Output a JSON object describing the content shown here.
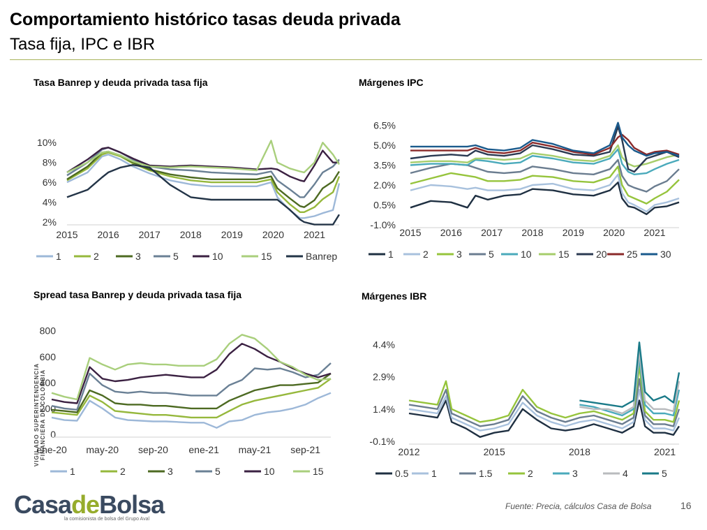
{
  "header": {
    "title": "Comportamiento histórico tasas deuda privada",
    "subtitle": "Tasa fija, IPC e IBR"
  },
  "footer": {
    "source": "Fuente: Precia, cálculos Casa de Bolsa",
    "page": "16",
    "logo_part1": "Casa",
    "logo_part2": "de",
    "logo_part3": "Bolsa",
    "logo_tagline": "la comisionista de bolsa del Grupo Aval",
    "side_text": "VIGILADO SUPERINTENDENCIA FINANCIERA DE COLOMBIA"
  },
  "chart_data": [
    {
      "type": "line",
      "title": "Tasa Banrep y deuda privada tasa fija",
      "x": [
        2015.0,
        2015.5,
        2015.85,
        2016.0,
        2016.3,
        2016.6,
        2017.0,
        2017.5,
        2018.0,
        2018.5,
        2019.0,
        2019.6,
        2019.95,
        2020.1,
        2020.4,
        2020.65,
        2020.75,
        2021.0,
        2021.2,
        2021.45,
        2021.6
      ],
      "x_ticks": [
        "2015",
        "2016",
        "2017",
        "2018",
        "2019",
        "2020",
        "2021"
      ],
      "y_ticks": [
        "2%",
        "4%",
        "6%",
        "8%",
        "10%"
      ],
      "ylim": [
        2,
        11
      ],
      "series": [
        {
          "name": "1",
          "color": "#9db8d8",
          "values": [
            6.0,
            7.0,
            8.6,
            8.8,
            8.3,
            7.6,
            6.9,
            6.2,
            5.8,
            5.6,
            5.6,
            5.6,
            6.0,
            4.5,
            3.2,
            2.4,
            2.4,
            2.6,
            2.9,
            3.2,
            5.9
          ]
        },
        {
          "name": "2",
          "color": "#96b83c",
          "values": [
            6.2,
            7.4,
            8.8,
            9.0,
            8.6,
            7.9,
            7.2,
            6.6,
            6.2,
            6.0,
            6.0,
            6.0,
            6.3,
            5.0,
            3.8,
            3.0,
            3.0,
            3.5,
            4.3,
            5.0,
            6.6
          ]
        },
        {
          "name": "3",
          "color": "#4d6a22",
          "values": [
            6.3,
            7.6,
            9.0,
            9.1,
            8.7,
            8.0,
            7.3,
            6.8,
            6.5,
            6.3,
            6.3,
            6.3,
            6.6,
            5.4,
            4.4,
            3.6,
            3.5,
            4.2,
            5.4,
            6.1,
            7.1
          ]
        },
        {
          "name": "5",
          "color": "#6a8095",
          "values": [
            6.7,
            8.0,
            9.3,
            9.5,
            9.0,
            8.3,
            7.6,
            7.3,
            7.2,
            7.0,
            6.9,
            6.8,
            7.1,
            6.2,
            5.3,
            4.5,
            4.5,
            5.8,
            7.0,
            7.6,
            8.3
          ]
        },
        {
          "name": "10",
          "color": "#3b2142",
          "values": [
            7.0,
            8.3,
            9.4,
            9.5,
            9.0,
            8.4,
            7.7,
            7.6,
            7.7,
            7.6,
            7.5,
            7.3,
            7.4,
            7.3,
            6.6,
            6.2,
            6.1,
            7.7,
            9.2,
            8.0,
            8.0
          ]
        },
        {
          "name": "15",
          "color": "#a9cf7c",
          "values": [
            7.0,
            8.0,
            9.0,
            9.1,
            8.7,
            8.1,
            7.6,
            7.5,
            7.6,
            7.5,
            7.4,
            7.2,
            10.2,
            8.0,
            7.4,
            7.1,
            7.0,
            8.0,
            10.0,
            8.8,
            7.8
          ]
        },
        {
          "name": "Banrep",
          "color": "#233447",
          "values": [
            4.5,
            5.25,
            6.5,
            7.0,
            7.5,
            7.75,
            7.5,
            5.75,
            4.5,
            4.25,
            4.25,
            4.25,
            4.25,
            4.25,
            3.25,
            2.25,
            2.0,
            1.75,
            1.75,
            1.75,
            2.75
          ]
        }
      ]
    },
    {
      "type": "line",
      "title": "Márgenes IPC",
      "x": [
        2015.0,
        2015.5,
        2016.0,
        2016.4,
        2016.6,
        2016.9,
        2017.3,
        2017.7,
        2018.0,
        2018.5,
        2019.0,
        2019.5,
        2019.9,
        2020.1,
        2020.2,
        2020.35,
        2020.5,
        2020.8,
        2021.0,
        2021.3,
        2021.6
      ],
      "x_ticks": [
        "2015",
        "2016",
        "2017",
        "2018",
        "2019",
        "2020",
        "2021"
      ],
      "y_ticks": [
        "-1.0%",
        "0.5%",
        "2.0%",
        "3.5%",
        "5.0%",
        "6.5%"
      ],
      "ylim": [
        -1.0,
        7.0
      ],
      "series": [
        {
          "name": "1",
          "color": "#1f3042",
          "values": [
            0.3,
            0.8,
            0.7,
            0.3,
            1.2,
            0.9,
            1.2,
            1.3,
            1.7,
            1.6,
            1.3,
            1.2,
            1.6,
            2.2,
            1.0,
            0.4,
            0.3,
            -0.2,
            0.3,
            0.4,
            0.7
          ]
        },
        {
          "name": "2",
          "color": "#a8c1dd",
          "values": [
            1.6,
            2.0,
            1.9,
            1.7,
            1.8,
            1.6,
            1.6,
            1.7,
            2.0,
            2.1,
            1.7,
            1.6,
            2.0,
            2.8,
            1.4,
            0.7,
            0.5,
            0.0,
            0.5,
            0.7,
            1.0
          ]
        },
        {
          "name": "3",
          "color": "#96c43c",
          "values": [
            2.1,
            2.5,
            2.9,
            2.7,
            2.6,
            2.3,
            2.3,
            2.4,
            2.7,
            2.6,
            2.3,
            2.2,
            2.6,
            3.4,
            2.0,
            1.2,
            1.0,
            0.6,
            1.0,
            1.5,
            2.4
          ]
        },
        {
          "name": "5",
          "color": "#6b7d90",
          "values": [
            2.9,
            3.3,
            3.6,
            3.5,
            3.3,
            3.0,
            2.9,
            3.0,
            3.4,
            3.2,
            2.9,
            2.8,
            3.2,
            3.9,
            2.7,
            2.0,
            1.8,
            1.5,
            1.9,
            2.3,
            3.2
          ]
        },
        {
          "name": "10",
          "color": "#4aaabb",
          "values": [
            3.5,
            3.6,
            3.6,
            3.5,
            3.9,
            3.8,
            3.6,
            3.7,
            4.2,
            4.0,
            3.7,
            3.6,
            4.0,
            4.7,
            3.6,
            3.0,
            2.8,
            2.9,
            3.2,
            3.6,
            3.9
          ]
        },
        {
          "name": "15",
          "color": "#a6cd6b",
          "values": [
            3.7,
            3.8,
            3.8,
            3.7,
            4.0,
            4.0,
            3.9,
            4.0,
            4.4,
            4.2,
            3.9,
            3.8,
            4.2,
            5.0,
            4.1,
            3.6,
            3.4,
            3.6,
            3.8,
            4.1,
            4.3
          ]
        },
        {
          "name": "20",
          "color": "#2b3a52",
          "values": [
            4.0,
            4.2,
            4.3,
            4.2,
            4.6,
            4.3,
            4.2,
            4.4,
            5.0,
            4.7,
            4.3,
            4.2,
            4.5,
            6.4,
            5.4,
            3.2,
            3.0,
            4.0,
            4.2,
            4.5,
            4.1
          ]
        },
        {
          "name": "25",
          "color": "#8a2a2a",
          "values": [
            4.6,
            4.6,
            4.6,
            4.6,
            4.8,
            4.5,
            4.4,
            4.6,
            5.2,
            4.9,
            4.5,
            4.3,
            4.8,
            5.6,
            5.8,
            5.4,
            4.8,
            4.3,
            4.5,
            4.6,
            4.3
          ]
        },
        {
          "name": "30",
          "color": "#1a5a8c",
          "values": [
            4.9,
            4.9,
            4.9,
            4.9,
            5.0,
            4.7,
            4.6,
            4.8,
            5.4,
            5.1,
            4.6,
            4.4,
            5.0,
            6.7,
            5.6,
            5.0,
            4.6,
            4.2,
            4.4,
            4.5,
            4.2
          ]
        }
      ]
    },
    {
      "type": "line",
      "title": "Spread tasa Banrep y deuda privada tasa fija",
      "x": [
        0,
        1,
        2,
        3,
        4,
        5,
        6,
        7,
        8,
        9,
        10,
        11,
        12,
        13,
        14,
        15,
        16,
        17,
        18,
        19,
        20,
        21,
        22
      ],
      "x_ticks": [
        "ene-20",
        "may-20",
        "sep-20",
        "ene-21",
        "may-21",
        "sep-21"
      ],
      "x_tick_pos": [
        0,
        4,
        8,
        12,
        16,
        20
      ],
      "y_ticks": [
        "0",
        "200",
        "400",
        "600",
        "800"
      ],
      "ylim": [
        0,
        820
      ],
      "series": [
        {
          "name": "1",
          "color": "#9db8d8",
          "values": [
            130,
            110,
            105,
            260,
            200,
            130,
            110,
            105,
            100,
            100,
            95,
            90,
            90,
            50,
            100,
            110,
            150,
            170,
            180,
            200,
            230,
            280,
            320
          ]
        },
        {
          "name": "2",
          "color": "#96b83c",
          "values": [
            170,
            160,
            150,
            300,
            250,
            180,
            170,
            160,
            150,
            150,
            140,
            130,
            130,
            130,
            180,
            230,
            260,
            280,
            300,
            320,
            340,
            360,
            430
          ]
        },
        {
          "name": "3",
          "color": "#4d6a22",
          "values": [
            190,
            180,
            170,
            340,
            300,
            240,
            230,
            230,
            220,
            220,
            210,
            200,
            200,
            200,
            260,
            300,
            340,
            360,
            380,
            380,
            390,
            400,
            470
          ]
        },
        {
          "name": "5",
          "color": "#6a8095",
          "values": [
            220,
            200,
            190,
            470,
            380,
            330,
            320,
            330,
            320,
            320,
            310,
            300,
            300,
            300,
            380,
            420,
            510,
            500,
            510,
            480,
            440,
            460,
            550
          ]
        },
        {
          "name": "10",
          "color": "#3b2142",
          "values": [
            270,
            250,
            240,
            520,
            430,
            410,
            420,
            440,
            450,
            460,
            450,
            440,
            440,
            500,
            620,
            700,
            660,
            600,
            560,
            510,
            470,
            440,
            470
          ]
        },
        {
          "name": "15",
          "color": "#a9cf7c",
          "values": [
            320,
            290,
            270,
            590,
            540,
            500,
            540,
            550,
            540,
            540,
            530,
            530,
            530,
            580,
            700,
            770,
            740,
            660,
            560,
            520,
            460,
            420,
            430
          ]
        }
      ]
    },
    {
      "type": "line",
      "title": "Márgenes IBR",
      "x": [
        2012.0,
        2012.5,
        2013.0,
        2013.3,
        2013.5,
        2014.0,
        2014.5,
        2015.0,
        2015.5,
        2016.0,
        2016.5,
        2017.0,
        2017.5,
        2018.0,
        2018.5,
        2019.0,
        2019.5,
        2019.9,
        2020.1,
        2020.3,
        2020.6,
        2021.0,
        2021.3,
        2021.5
      ],
      "x_ticks": [
        "2012",
        "2015",
        "2018",
        "2021"
      ],
      "y_ticks": [
        "-0.1%",
        "1.4%",
        "2.9%",
        "4.4%"
      ],
      "ylim": [
        -0.1,
        4.9
      ],
      "series": [
        {
          "name": "0.5",
          "color": "#1f3042",
          "values": [
            1.2,
            1.1,
            1.0,
            1.8,
            0.8,
            0.5,
            0.1,
            0.3,
            0.4,
            1.4,
            0.9,
            0.5,
            0.4,
            0.5,
            0.7,
            0.5,
            0.3,
            0.6,
            1.8,
            0.6,
            0.3,
            0.3,
            0.2,
            0.6
          ]
        },
        {
          "name": "1",
          "color": "#a8c1dd",
          "values": [
            1.4,
            1.3,
            1.2,
            2.0,
            1.0,
            0.7,
            0.4,
            0.5,
            0.7,
            1.7,
            1.1,
            0.8,
            0.6,
            0.8,
            0.9,
            0.7,
            0.5,
            0.8,
            2.3,
            0.9,
            0.5,
            0.5,
            0.4,
            1.0
          ]
        },
        {
          "name": "1.5",
          "color": "#6b7d90",
          "values": [
            1.6,
            1.5,
            1.4,
            2.3,
            1.2,
            0.9,
            0.6,
            0.7,
            0.9,
            2.0,
            1.3,
            1.0,
            0.8,
            1.0,
            1.1,
            0.9,
            0.7,
            1.0,
            2.8,
            1.1,
            0.7,
            0.7,
            0.6,
            1.4
          ]
        },
        {
          "name": "2",
          "color": "#96c43c",
          "values": [
            1.8,
            1.7,
            1.6,
            2.7,
            1.4,
            1.1,
            0.8,
            0.9,
            1.1,
            2.3,
            1.5,
            1.2,
            1.0,
            1.2,
            1.3,
            1.1,
            0.9,
            1.2,
            3.4,
            1.3,
            0.9,
            0.9,
            0.8,
            1.8
          ]
        },
        {
          "name": "3",
          "color": "#4aaabb",
          "values": [
            null,
            null,
            null,
            null,
            null,
            null,
            null,
            null,
            null,
            null,
            null,
            null,
            null,
            1.6,
            1.5,
            1.3,
            1.1,
            1.4,
            3.8,
            1.6,
            1.2,
            1.2,
            1.1,
            2.3
          ]
        },
        {
          "name": "4",
          "color": "#b9bbbe",
          "values": [
            null,
            null,
            null,
            null,
            null,
            null,
            null,
            null,
            null,
            null,
            null,
            null,
            null,
            1.5,
            1.4,
            1.4,
            1.2,
            1.5,
            4.1,
            1.8,
            1.4,
            1.4,
            1.3,
            2.7
          ]
        },
        {
          "name": "5",
          "color": "#1a7a88",
          "values": [
            null,
            null,
            null,
            null,
            null,
            null,
            null,
            null,
            null,
            null,
            null,
            null,
            null,
            1.8,
            1.7,
            1.6,
            1.5,
            1.8,
            4.5,
            2.2,
            1.8,
            2.0,
            1.7,
            3.1
          ]
        }
      ]
    }
  ]
}
